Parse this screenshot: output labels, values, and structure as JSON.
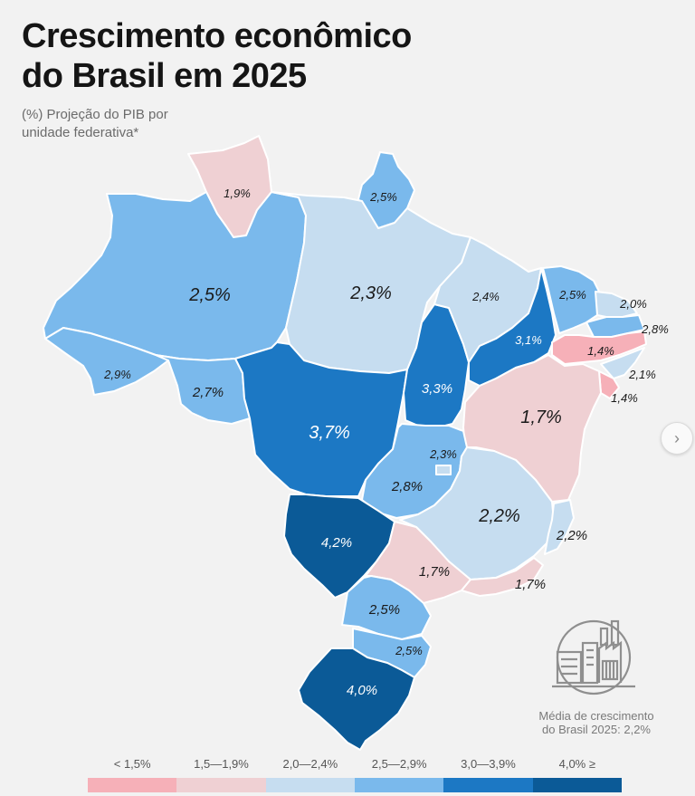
{
  "header": {
    "title_line1": "Crescimento econômico",
    "title_line2": "do Brasil em 2025",
    "subtitle_line1": "(%) Projeção do PIB por",
    "subtitle_line2": "unidade federativa*"
  },
  "colors": {
    "lt_1_5": "#f6b0b8",
    "c_1_5_1_9": "#efd0d3",
    "c_2_0_2_4": "#c6ddf0",
    "c_2_5_2_9": "#7ab9ec",
    "c_3_0_3_9": "#1c78c4",
    "c_4_0_plus": "#0b5a97"
  },
  "states": {
    "RR": {
      "value": "1,9%",
      "bin": "c_1_5_1_9"
    },
    "AP": {
      "value": "2,5%",
      "bin": "c_2_5_2_9"
    },
    "AM": {
      "value": "2,5%",
      "bin": "c_2_5_2_9"
    },
    "PA": {
      "value": "2,3%",
      "bin": "c_2_0_2_4"
    },
    "AC": {
      "value": "2,9%",
      "bin": "c_2_5_2_9"
    },
    "RO": {
      "value": "2,7%",
      "bin": "c_2_5_2_9"
    },
    "MT": {
      "value": "3,7%",
      "bin": "c_3_0_3_9"
    },
    "TO": {
      "value": "3,3%",
      "bin": "c_3_0_3_9"
    },
    "MA": {
      "value": "2,4%",
      "bin": "c_2_0_2_4"
    },
    "PI": {
      "value": "3,1%",
      "bin": "c_3_0_3_9"
    },
    "CE": {
      "value": "2,5%",
      "bin": "c_2_5_2_9"
    },
    "RN": {
      "value": "2,0%",
      "bin": "c_2_0_2_4"
    },
    "PB": {
      "value": "2,8%",
      "bin": "c_2_5_2_9"
    },
    "PE": {
      "value": "1,4%",
      "bin": "lt_1_5"
    },
    "AL": {
      "value": "2,1%",
      "bin": "c_2_0_2_4"
    },
    "SE": {
      "value": "1,4%",
      "bin": "lt_1_5"
    },
    "BA": {
      "value": "1,7%",
      "bin": "c_1_5_1_9"
    },
    "GO": {
      "value": "2,8%",
      "bin": "c_2_5_2_9"
    },
    "DF": {
      "value": "2,3%",
      "bin": "c_2_0_2_4"
    },
    "MG": {
      "value": "2,2%",
      "bin": "c_2_0_2_4"
    },
    "ES": {
      "value": "2,2%",
      "bin": "c_2_0_2_4"
    },
    "MS": {
      "value": "4,2%",
      "bin": "c_4_0_plus"
    },
    "SP": {
      "value": "1,7%",
      "bin": "c_1_5_1_9"
    },
    "RJ": {
      "value": "1,7%",
      "bin": "c_1_5_1_9"
    },
    "PR": {
      "value": "2,5%",
      "bin": "c_2_5_2_9"
    },
    "SC": {
      "value": "2,5%",
      "bin": "c_2_5_2_9"
    },
    "RS": {
      "value": "4,0%",
      "bin": "c_4_0_plus"
    }
  },
  "note": {
    "line1": "Média de crescimento",
    "line2": "do Brasil 2025: 2,2%"
  },
  "icon": {
    "name": "city-industry-icon"
  },
  "legend": [
    {
      "label": "< 1,5%",
      "bin": "lt_1_5"
    },
    {
      "label": "1,5—1,9%",
      "bin": "c_1_5_1_9"
    },
    {
      "label": "2,0—2,4%",
      "bin": "c_2_0_2_4"
    },
    {
      "label": "2,5—2,9%",
      "bin": "c_2_5_2_9"
    },
    {
      "label": "3,0—3,9%",
      "bin": "c_3_0_3_9"
    },
    {
      "label": "4,0% ≥",
      "bin": "c_4_0_plus"
    }
  ],
  "nav": {
    "next_glyph": "›"
  }
}
